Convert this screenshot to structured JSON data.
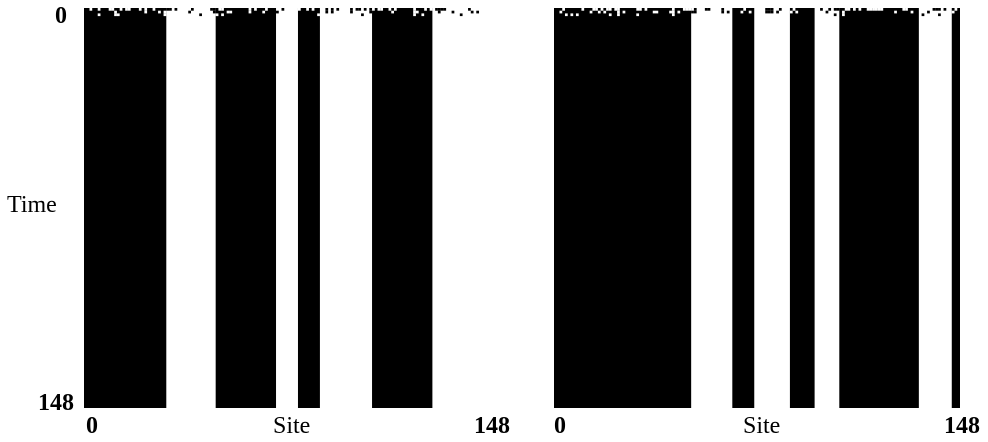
{
  "labels": {
    "y_axis": "Time",
    "x_axis_left": "Site",
    "x_axis_right": "Site",
    "y_top": "0",
    "y_bottom": "148",
    "x_left_start": "0",
    "x_left_end": "148",
    "x_right_start": "0",
    "x_right_end": "148"
  },
  "colors": {
    "on": "#000000",
    "off": "#ffffff"
  },
  "panels": [
    {
      "name": "left",
      "sites": 148,
      "steps": 148,
      "white_columns": [
        [
          30,
          48
        ],
        [
          70,
          78
        ],
        [
          86,
          105
        ],
        [
          127,
          148
        ]
      ]
    },
    {
      "name": "right",
      "sites": 148,
      "steps": 148,
      "white_columns": [
        [
          50,
          65
        ],
        [
          73,
          86
        ],
        [
          95,
          104
        ],
        [
          133,
          145
        ]
      ]
    }
  ]
}
